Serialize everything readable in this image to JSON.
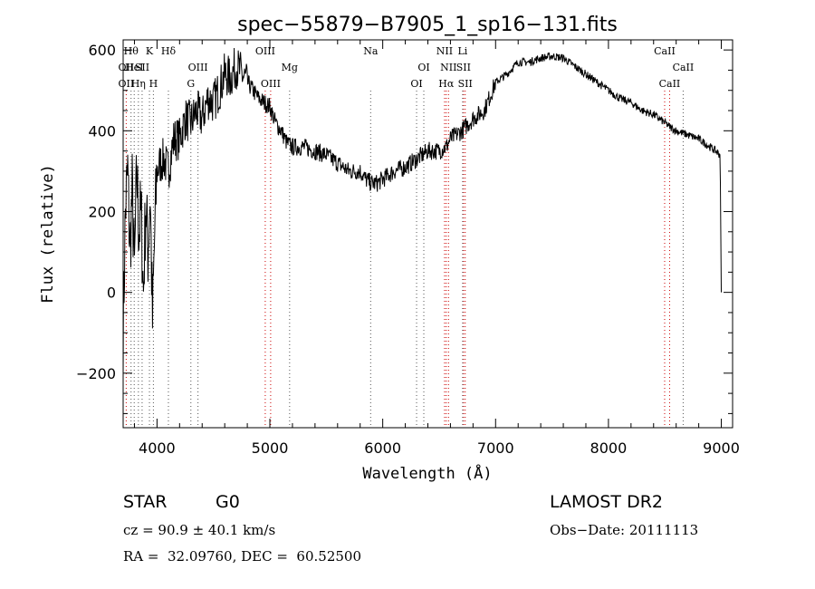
{
  "chart_data": {
    "type": "line",
    "title": "spec−55879−B7905_1_sp16−131.fits",
    "xlabel": "Wavelength (Å)",
    "ylabel": "Flux (relative)",
    "xlim": [
      3700,
      9100
    ],
    "ylim": [
      -335,
      625
    ],
    "x_ticks": [
      4000,
      5000,
      6000,
      7000,
      8000,
      9000
    ],
    "y_ticks": [
      -200,
      0,
      200,
      400,
      600
    ],
    "grid": false,
    "series": [
      {
        "x": [
          3700,
          3720,
          3740,
          3760,
          3780,
          3800,
          3820,
          3840,
          3860,
          3880,
          3900,
          3920,
          3940,
          3960,
          3980,
          4000,
          4030,
          4060,
          4100,
          4150,
          4200,
          4250,
          4300,
          4350,
          4400,
          4450,
          4500,
          4550,
          4600,
          4650,
          4700,
          4750,
          4800,
          4850,
          4900,
          4950,
          5000,
          5050,
          5100,
          5150,
          5200,
          5300,
          5400,
          5500,
          5600,
          5700,
          5800,
          5850,
          5900,
          5950,
          6000,
          6100,
          6200,
          6300,
          6400,
          6500,
          6563,
          6600,
          6700,
          6800,
          6900,
          7000,
          7100,
          7200,
          7300,
          7400,
          7500,
          7600,
          7700,
          7800,
          7900,
          8000,
          8100,
          8200,
          8300,
          8400,
          8500,
          8542,
          8600,
          8700,
          8800,
          8900,
          8950,
          8990,
          9000
        ],
        "y": [
          -100,
          200,
          300,
          100,
          250,
          50,
          300,
          150,
          200,
          0,
          220,
          100,
          250,
          -80,
          150,
          300,
          320,
          330,
          300,
          380,
          380,
          430,
          420,
          450,
          430,
          480,
          470,
          500,
          540,
          530,
          560,
          540,
          520,
          500,
          480,
          470,
          460,
          420,
          400,
          370,
          360,
          360,
          350,
          340,
          320,
          300,
          300,
          280,
          270,
          270,
          280,
          300,
          310,
          330,
          350,
          350,
          360,
          380,
          400,
          430,
          450,
          520,
          540,
          570,
          570,
          580,
          585,
          580,
          560,
          540,
          520,
          500,
          480,
          470,
          450,
          440,
          420,
          410,
          400,
          390,
          380,
          360,
          350,
          340,
          0
        ]
      }
    ],
    "line_markers": [
      {
        "wl": 3727,
        "label": "OII",
        "row": 2
      },
      {
        "wl": 3727,
        "label": "OII",
        "row": 3
      },
      {
        "wl": 3770,
        "label": "Hθ",
        "row": 1
      },
      {
        "wl": 3798,
        "label": "HeI",
        "row": 2
      },
      {
        "wl": 3835,
        "label": "Hη",
        "row": 3
      },
      {
        "wl": 3868,
        "label": "SII",
        "row": 2
      },
      {
        "wl": 3933,
        "label": "K",
        "row": 1
      },
      {
        "wl": 3968,
        "label": "H",
        "row": 3
      },
      {
        "wl": 4101,
        "label": "Hδ",
        "row": 1
      },
      {
        "wl": 4300,
        "label": "G",
        "row": 3
      },
      {
        "wl": 4363,
        "label": "OIII",
        "row": 2
      },
      {
        "wl": 4959,
        "label": "OIII",
        "row": 1
      },
      {
        "wl": 5007,
        "label": "OIII",
        "row": 3
      },
      {
        "wl": 5175,
        "label": "Mg",
        "row": 2
      },
      {
        "wl": 5893,
        "label": "Na",
        "row": 1
      },
      {
        "wl": 6300,
        "label": "OI",
        "row": 3
      },
      {
        "wl": 6364,
        "label": "OI",
        "row": 2
      },
      {
        "wl": 6548,
        "label": "NII",
        "row": 1
      },
      {
        "wl": 6563,
        "label": "Hα",
        "row": 3
      },
      {
        "wl": 6583,
        "label": "NII",
        "row": 2
      },
      {
        "wl": 6708,
        "label": "Li",
        "row": 1
      },
      {
        "wl": 6716,
        "label": "SII",
        "row": 2
      },
      {
        "wl": 6731,
        "label": "SII",
        "row": 3
      },
      {
        "wl": 8498,
        "label": "CaII",
        "row": 1
      },
      {
        "wl": 8542,
        "label": "CaII",
        "row": 3
      },
      {
        "wl": 8662,
        "label": "CaII",
        "row": 2
      }
    ]
  },
  "info": {
    "class": "STAR",
    "subclass": "G0",
    "survey": "LAMOST DR2",
    "cz": "cz = 90.9 ± 40.1 km/s",
    "obs_date": "Obs−Date: 20111113",
    "coords": "RA =  32.09760, DEC =  60.52500"
  }
}
